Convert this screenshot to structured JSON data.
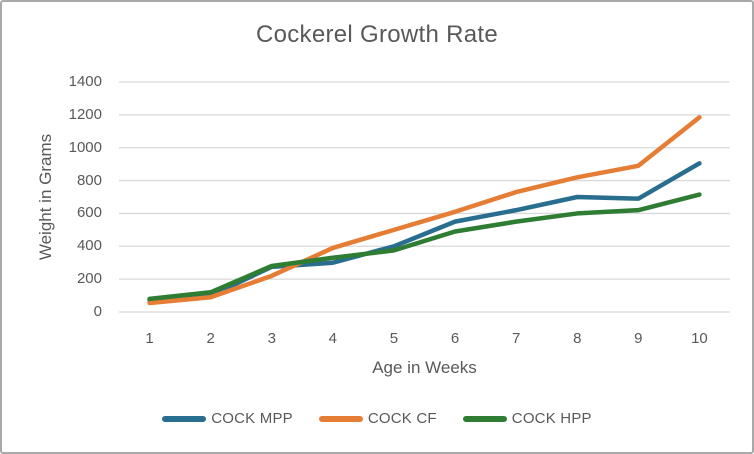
{
  "chart_data": {
    "type": "line",
    "title": "Cockerel Growth Rate",
    "xlabel": "Age in Weeks",
    "ylabel": "Weight in Grams",
    "x": [
      1,
      2,
      3,
      4,
      5,
      6,
      7,
      8,
      9,
      10
    ],
    "series": [
      {
        "name": "COCK MPP",
        "color": "#2A6E8F",
        "values": [
          70,
          100,
          275,
          300,
          400,
          550,
          620,
          700,
          690,
          905
        ]
      },
      {
        "name": "COCK CF",
        "color": "#E57D35",
        "values": [
          55,
          90,
          220,
          390,
          500,
          610,
          730,
          820,
          890,
          1185
        ]
      },
      {
        "name": "COCK HPP",
        "color": "#2E7D33",
        "values": [
          80,
          120,
          280,
          330,
          375,
          490,
          550,
          600,
          620,
          715
        ]
      }
    ],
    "ylim": [
      0,
      1400
    ],
    "yticks": [
      0,
      200,
      400,
      600,
      800,
      1000,
      1200,
      1400
    ],
    "grid": "horizontal-only",
    "legend_position": "bottom",
    "markers": "none"
  },
  "colors": {
    "text": "#595959",
    "grid": "#D9D9D9",
    "border": "#A9A9A9",
    "background": "#FFFFFF"
  }
}
